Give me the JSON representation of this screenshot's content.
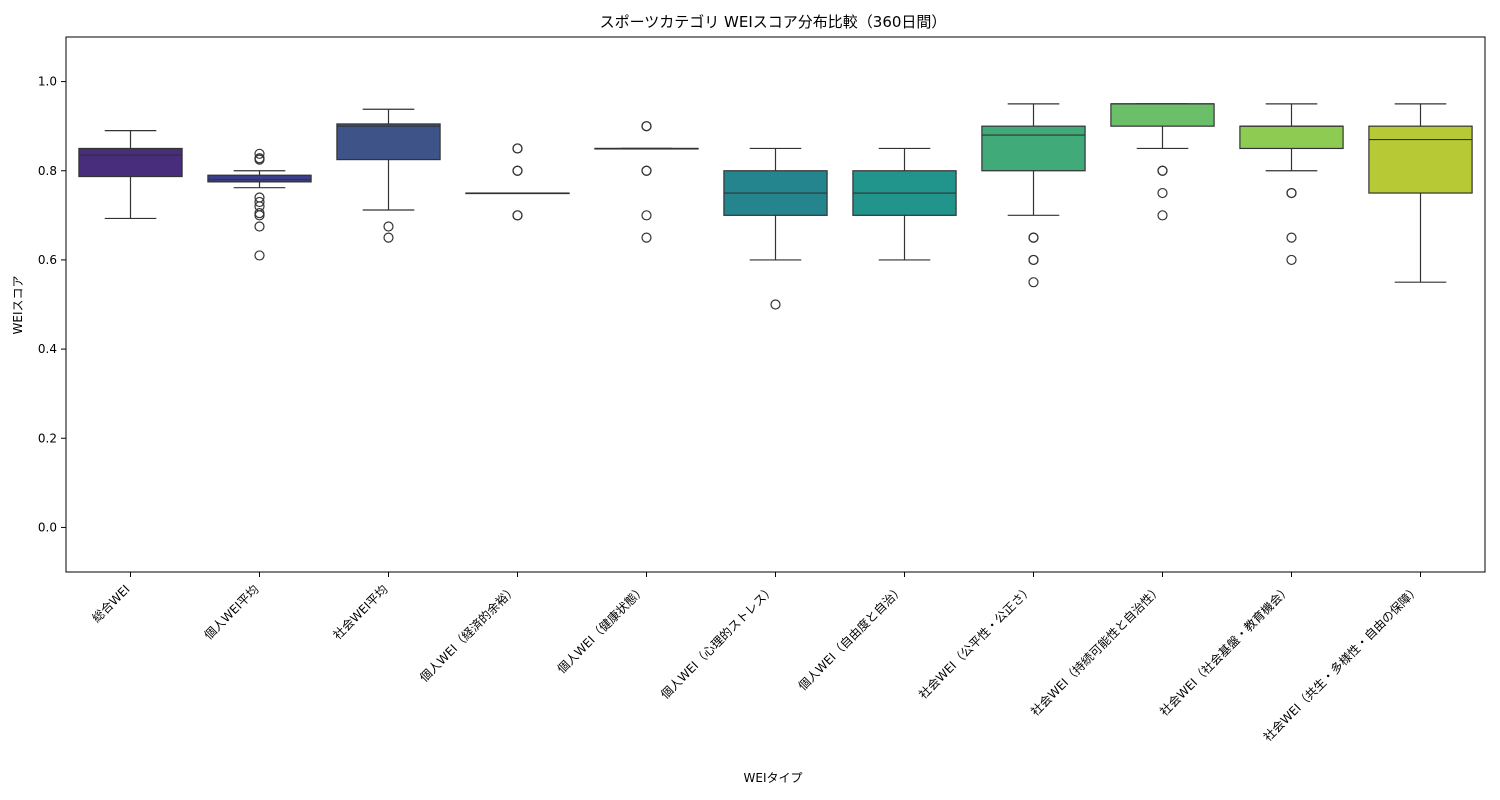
{
  "chart_data": {
    "type": "box",
    "title": "スポーツカテゴリ WEIスコア分布比較（360日間）",
    "xlabel": "WEIタイプ",
    "ylabel": "WEIスコア",
    "ylim": [
      -0.1,
      1.1
    ],
    "yticks": [
      "0.0",
      "0.2",
      "0.4",
      "0.6",
      "0.8",
      "1.0"
    ],
    "ytick_values": [
      0.0,
      0.2,
      0.4,
      0.6,
      0.8,
      1.0
    ],
    "grid": false,
    "categories": [
      "総合WEI",
      "個人WEI平均",
      "社会WEI平均",
      "個人WEI（経済的余裕）",
      "個人WEI（健康状態）",
      "個人WEI（心理的ストレス）",
      "個人WEI（自由度と自治）",
      "社会WEI（公平性・公正さ）",
      "社会WEI（持続可能性と自治性）",
      "社会WEI（社会基盤・教育機会）",
      "社会WEI（共生・多様性・自由の保障）"
    ],
    "boxes": [
      {
        "color": "#472d7b",
        "q1": 0.787,
        "median": 0.835,
        "q3": 0.85,
        "whislo": 0.693,
        "whishi": 0.89,
        "fliers": []
      },
      {
        "color": "#3b3f87",
        "q1": 0.775,
        "median": 0.78,
        "q3": 0.79,
        "whislo": 0.762,
        "whishi": 0.8,
        "fliers": [
          0.838,
          0.828,
          0.825,
          0.74,
          0.73,
          0.72,
          0.705,
          0.7,
          0.675,
          0.61
        ]
      },
      {
        "color": "#3e5489",
        "q1": 0.825,
        "median": 0.9,
        "q3": 0.905,
        "whislo": 0.712,
        "whishi": 0.938,
        "fliers": [
          0.675,
          0.65
        ]
      },
      {
        "color": "#31688e",
        "q1": 0.75,
        "median": 0.75,
        "q3": 0.75,
        "whislo": 0.75,
        "whishi": 0.75,
        "fliers": [
          0.85,
          0.85,
          0.8,
          0.8,
          0.7,
          0.7
        ]
      },
      {
        "color": "#2c7b8e",
        "q1": 0.85,
        "median": 0.85,
        "q3": 0.85,
        "whislo": 0.85,
        "whishi": 0.85,
        "fliers": [
          0.9,
          0.9,
          0.8,
          0.8,
          0.7,
          0.65
        ]
      },
      {
        "color": "#25858e",
        "q1": 0.7,
        "median": 0.75,
        "q3": 0.8,
        "whislo": 0.6,
        "whishi": 0.85,
        "fliers": [
          0.5
        ]
      },
      {
        "color": "#21958b",
        "q1": 0.7,
        "median": 0.75,
        "q3": 0.8,
        "whislo": 0.6,
        "whishi": 0.85,
        "fliers": []
      },
      {
        "color": "#40aa78",
        "q1": 0.8,
        "median": 0.88,
        "q3": 0.9,
        "whislo": 0.7,
        "whishi": 0.95,
        "fliers": [
          0.65,
          0.65,
          0.6,
          0.6,
          0.55
        ]
      },
      {
        "color": "#6bbf68",
        "q1": 0.9,
        "median": 0.95,
        "q3": 0.95,
        "whislo": 0.85,
        "whishi": 0.95,
        "fliers": [
          0.8,
          0.8,
          0.75,
          0.7
        ]
      },
      {
        "color": "#8ecb52",
        "q1": 0.85,
        "median": 0.9,
        "q3": 0.9,
        "whislo": 0.8,
        "whishi": 0.95,
        "fliers": [
          0.75,
          0.75,
          0.65,
          0.6
        ]
      },
      {
        "color": "#b8c936",
        "q1": 0.75,
        "median": 0.87,
        "q3": 0.9,
        "whislo": 0.55,
        "whishi": 0.95,
        "fliers": []
      }
    ]
  }
}
